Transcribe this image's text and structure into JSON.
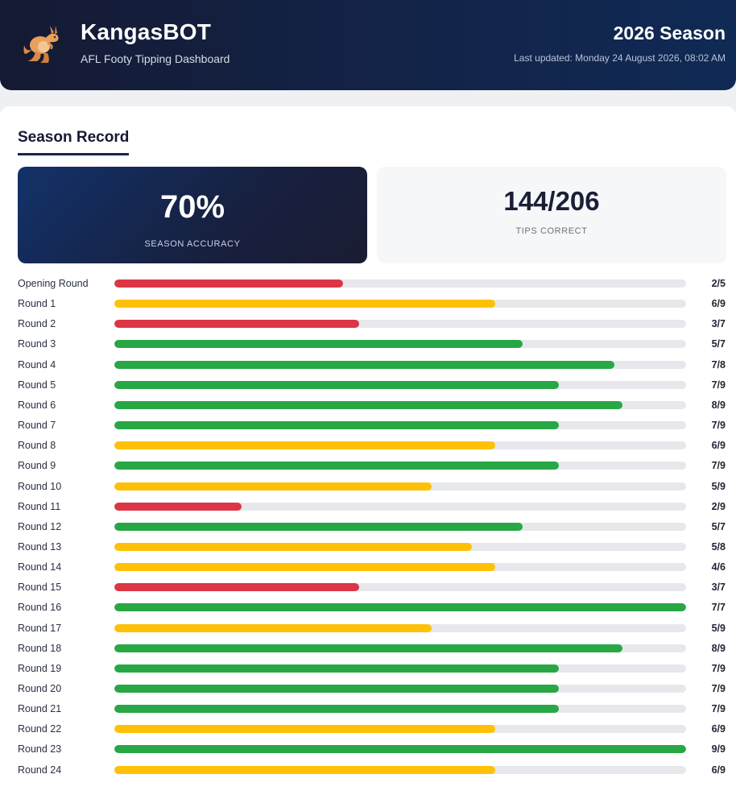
{
  "header": {
    "title": "KangasBOT",
    "subtitle": "AFL Footy Tipping Dashboard",
    "season": "2026 Season",
    "last_updated": "Last updated: Monday 24 August 2026, 08:02 AM",
    "logo_icon": "kangaroo-icon"
  },
  "section": {
    "title": "Season Record"
  },
  "stats": {
    "accuracy_value": "70%",
    "accuracy_label": "SEASON ACCURACY",
    "tips_value": "144/206",
    "tips_label": "TIPS CORRECT"
  },
  "colors": {
    "good": "#28a745",
    "mid": "#ffc107",
    "bad": "#dc3545",
    "track": "#e6e8ec"
  },
  "rounds": [
    {
      "label": "Opening Round",
      "correct": 2,
      "total": 5,
      "score": "2/5"
    },
    {
      "label": "Round 1",
      "correct": 6,
      "total": 9,
      "score": "6/9"
    },
    {
      "label": "Round 2",
      "correct": 3,
      "total": 7,
      "score": "3/7"
    },
    {
      "label": "Round 3",
      "correct": 5,
      "total": 7,
      "score": "5/7"
    },
    {
      "label": "Round 4",
      "correct": 7,
      "total": 8,
      "score": "7/8"
    },
    {
      "label": "Round 5",
      "correct": 7,
      "total": 9,
      "score": "7/9"
    },
    {
      "label": "Round 6",
      "correct": 8,
      "total": 9,
      "score": "8/9"
    },
    {
      "label": "Round 7",
      "correct": 7,
      "total": 9,
      "score": "7/9"
    },
    {
      "label": "Round 8",
      "correct": 6,
      "total": 9,
      "score": "6/9"
    },
    {
      "label": "Round 9",
      "correct": 7,
      "total": 9,
      "score": "7/9"
    },
    {
      "label": "Round 10",
      "correct": 5,
      "total": 9,
      "score": "5/9"
    },
    {
      "label": "Round 11",
      "correct": 2,
      "total": 9,
      "score": "2/9"
    },
    {
      "label": "Round 12",
      "correct": 5,
      "total": 7,
      "score": "5/7"
    },
    {
      "label": "Round 13",
      "correct": 5,
      "total": 8,
      "score": "5/8"
    },
    {
      "label": "Round 14",
      "correct": 4,
      "total": 6,
      "score": "4/6"
    },
    {
      "label": "Round 15",
      "correct": 3,
      "total": 7,
      "score": "3/7"
    },
    {
      "label": "Round 16",
      "correct": 7,
      "total": 7,
      "score": "7/7"
    },
    {
      "label": "Round 17",
      "correct": 5,
      "total": 9,
      "score": "5/9"
    },
    {
      "label": "Round 18",
      "correct": 8,
      "total": 9,
      "score": "8/9"
    },
    {
      "label": "Round 19",
      "correct": 7,
      "total": 9,
      "score": "7/9"
    },
    {
      "label": "Round 20",
      "correct": 7,
      "total": 9,
      "score": "7/9"
    },
    {
      "label": "Round 21",
      "correct": 7,
      "total": 9,
      "score": "7/9"
    },
    {
      "label": "Round 22",
      "correct": 6,
      "total": 9,
      "score": "6/9"
    },
    {
      "label": "Round 23",
      "correct": 9,
      "total": 9,
      "score": "9/9"
    },
    {
      "label": "Round 24",
      "correct": 6,
      "total": 9,
      "score": "6/9"
    }
  ]
}
